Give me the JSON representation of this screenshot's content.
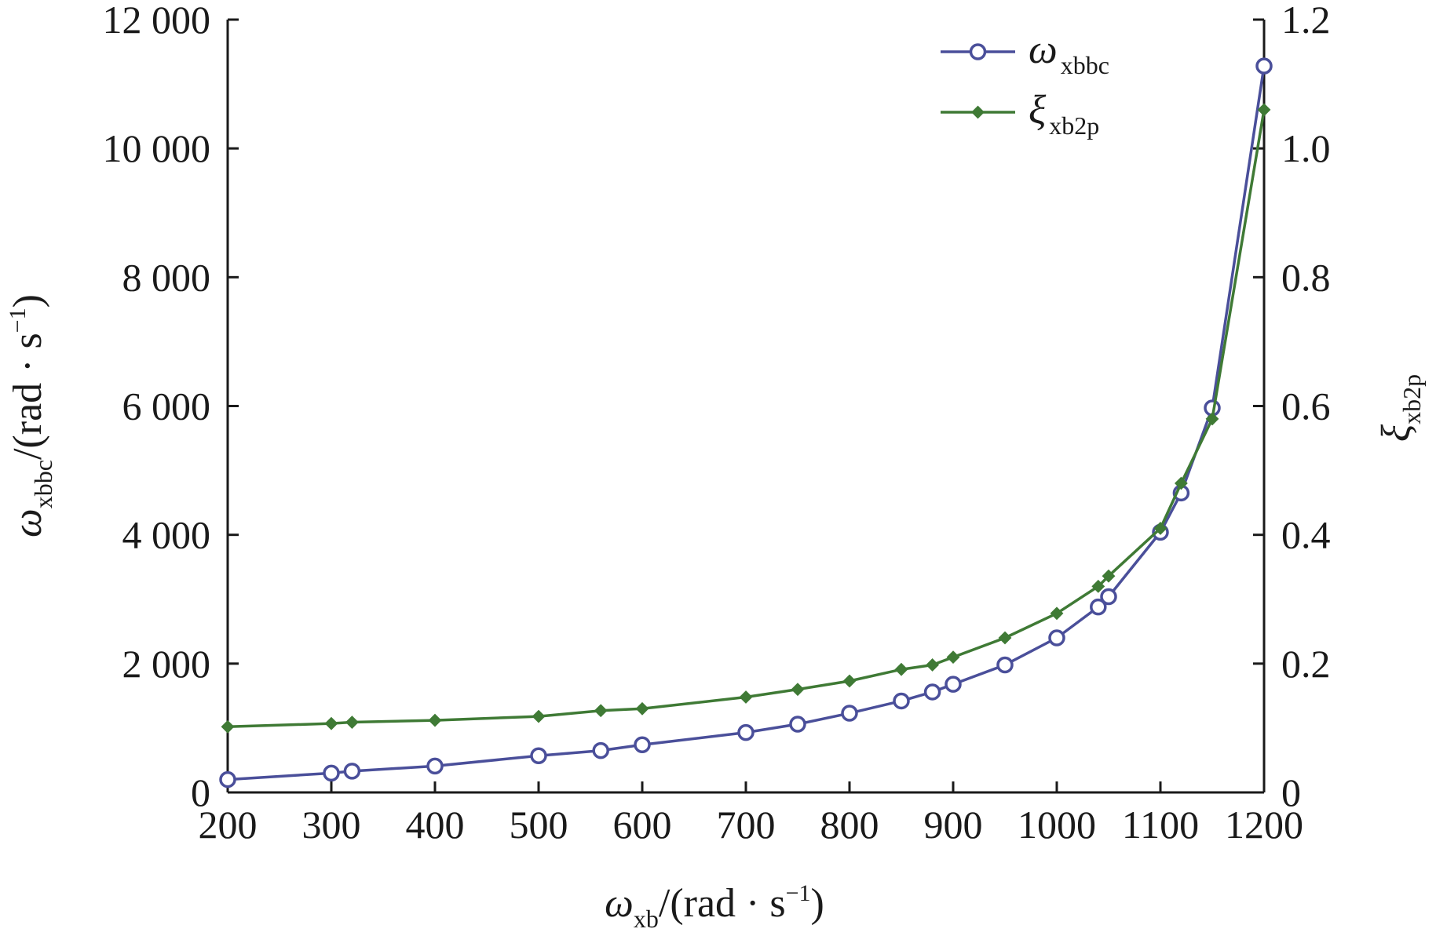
{
  "chart_data": {
    "type": "line",
    "title": "",
    "xlabel": {
      "main": "ω",
      "sub": "xb",
      "unit_pre": "/(rad · s",
      "sup": "−1",
      "unit_post": ")"
    },
    "ylabel_left": {
      "main": "ω",
      "sub": "xbbc",
      "unit_pre": "/(rad · s",
      "sup": "−1",
      "unit_post": ")"
    },
    "ylabel_right": {
      "main": "ξ",
      "sub": "xb2p"
    },
    "xlim": [
      200,
      1200
    ],
    "ylim_left": [
      0,
      12000
    ],
    "ylim_right": [
      0,
      1.2
    ],
    "x_ticks": [
      "200",
      "300",
      "400",
      "500",
      "600",
      "700",
      "800",
      "900",
      "1000",
      "1100",
      "1200"
    ],
    "y_left_ticks": [
      "0",
      "2 000",
      "4 000",
      "6 000",
      "8 000",
      "10 000",
      "12 000"
    ],
    "y_right_ticks": [
      "0",
      "0.2",
      "0.4",
      "0.6",
      "0.8",
      "1.0",
      "1.2"
    ],
    "grid": false,
    "legend_position": "top-right",
    "series": [
      {
        "name": "ω",
        "name_sub": "xbbc",
        "axis": "left",
        "color": "#4a4f9a",
        "marker": "circle",
        "x": [
          200,
          300,
          320,
          400,
          500,
          560,
          600,
          700,
          750,
          800,
          850,
          880,
          900,
          950,
          1000,
          1040,
          1050,
          1100,
          1120,
          1150,
          1200
        ],
        "y": [
          200,
          300,
          330,
          410,
          570,
          650,
          740,
          930,
          1060,
          1230,
          1420,
          1560,
          1680,
          1980,
          2400,
          2880,
          3040,
          4040,
          4650,
          5970,
          11280
        ]
      },
      {
        "name": "ξ",
        "name_sub": "xb2p",
        "axis": "right",
        "color": "#3f7a35",
        "marker": "diamond",
        "x": [
          200,
          300,
          320,
          400,
          500,
          560,
          600,
          700,
          750,
          800,
          850,
          880,
          900,
          950,
          1000,
          1040,
          1050,
          1100,
          1120,
          1150,
          1200
        ],
        "y": [
          0.102,
          0.107,
          0.109,
          0.112,
          0.118,
          0.127,
          0.13,
          0.148,
          0.16,
          0.173,
          0.191,
          0.198,
          0.21,
          0.24,
          0.278,
          0.32,
          0.336,
          0.41,
          0.48,
          0.58,
          1.06
        ]
      }
    ]
  }
}
